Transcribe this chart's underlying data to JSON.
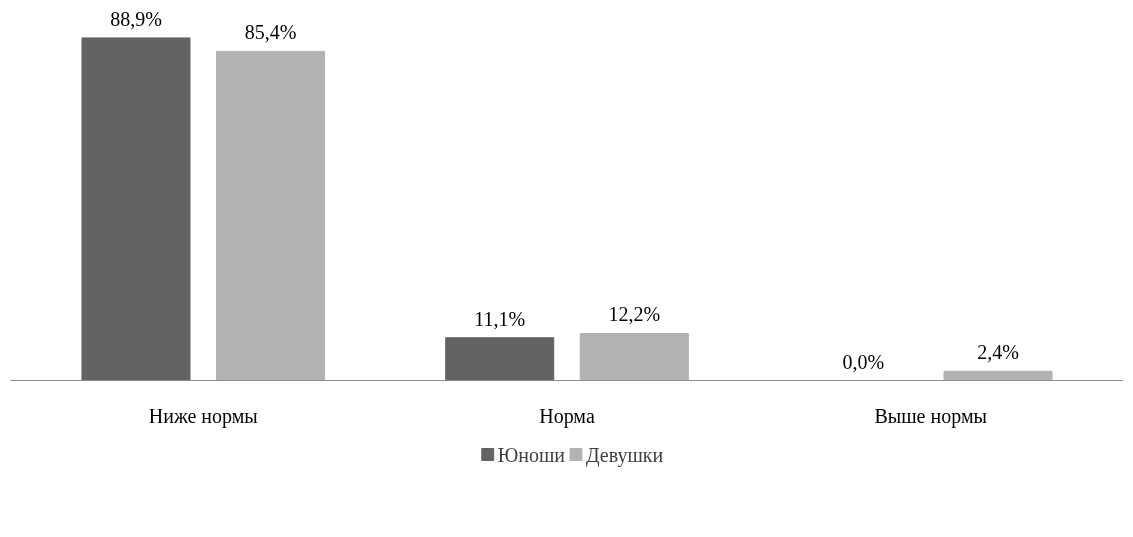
{
  "chart_data": {
    "type": "bar",
    "categories": [
      "Ниже нормы",
      "Норма",
      "Выше нормы"
    ],
    "series": [
      {
        "name": "Юноши",
        "color": "#636363",
        "values": [
          88.9,
          11.1,
          0.0
        ],
        "value_labels": [
          "88,9%",
          "11,1%",
          "0,0%"
        ]
      },
      {
        "name": "Девушки",
        "color": "#b2b2b2",
        "values": [
          85.4,
          12.2,
          2.4
        ],
        "value_labels": [
          "85,4%",
          "12,2%",
          "2,4%"
        ]
      }
    ],
    "tick_labels": "x",
    "grid": false,
    "legend": "bottom"
  }
}
